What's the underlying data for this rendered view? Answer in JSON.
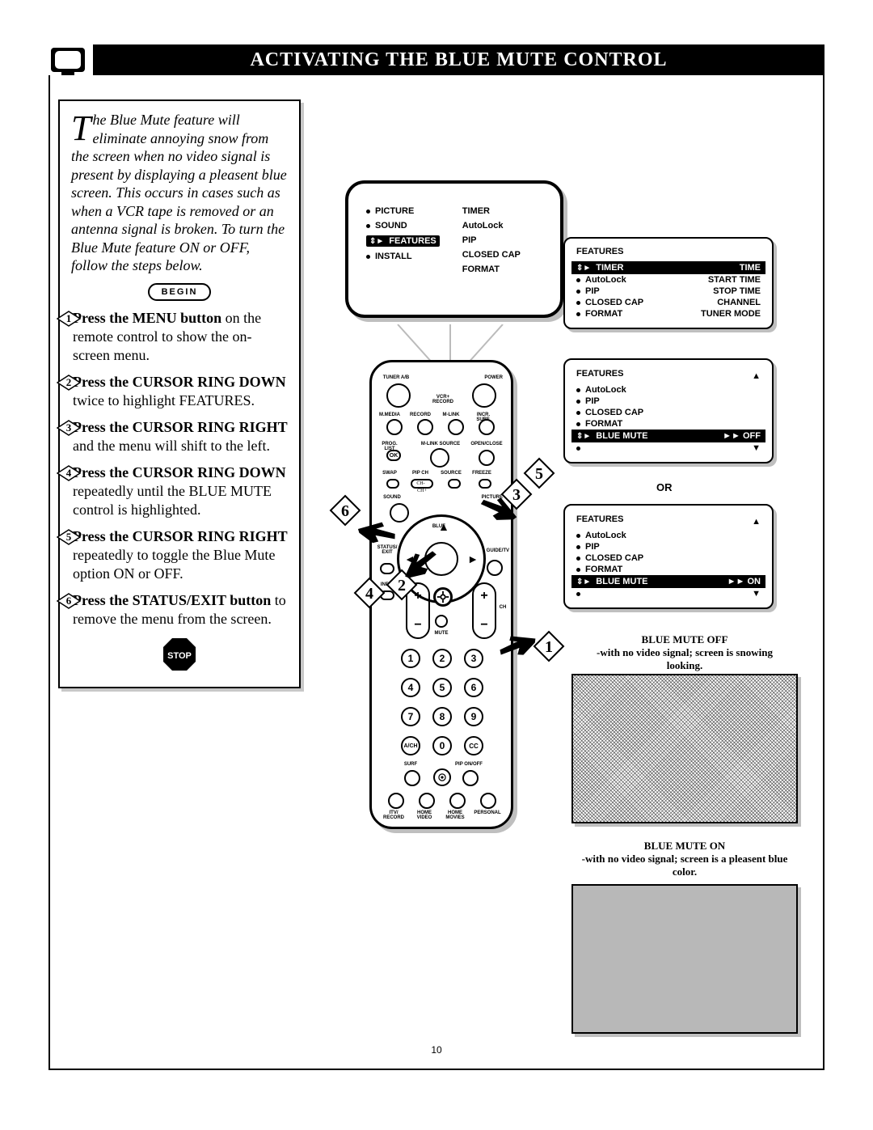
{
  "title": "ACTIVATING THE BLUE MUTE CONTROL",
  "intro_first": "T",
  "intro_rest": "he Blue Mute feature will eliminate annoying snow from the screen when no video signal is present by displaying a pleasent blue screen. This occurs in cases such as when a VCR tape is removed or an antenna signal is broken. To turn the Blue Mute feature ON or OFF, follow the steps below.",
  "begin": "BEGIN",
  "steps": [
    {
      "n": "1",
      "bold": "Press the MENU button",
      "rest": " on the remote control to show the on-screen menu."
    },
    {
      "n": "2",
      "bold": "Press the CURSOR RING DOWN",
      "rest": " twice to highlight FEATURES."
    },
    {
      "n": "3",
      "bold": "Press the CURSOR RING RIGHT",
      "rest": " and the menu will shift to the left."
    },
    {
      "n": "4",
      "bold": "Press the CURSOR RING DOWN",
      "rest": " repeatedly until the BLUE MUTE control is highlighted."
    },
    {
      "n": "5",
      "bold": "Press the CURSOR RING RIGHT",
      "rest": " repeatedly to toggle the Blue Mute option ON or OFF."
    },
    {
      "n": "6",
      "bold": "Press the STATUS/EXIT button",
      "rest": " to remove the menu from the screen."
    }
  ],
  "stop": "STOP",
  "tv_menu_left": [
    "PICTURE",
    "SOUND",
    "FEATURES",
    "INSTALL"
  ],
  "tv_menu_right": [
    "TIMER",
    "AutoLock",
    "PIP",
    "CLOSED CAP",
    "FORMAT"
  ],
  "tv_highlight_index": 2,
  "panel1": {
    "title": "FEATURES",
    "rows": [
      {
        "label": "TIMER",
        "value": "TIME",
        "hl": true
      },
      {
        "label": "AutoLock",
        "value": "START TIME"
      },
      {
        "label": "PIP",
        "value": "STOP TIME"
      },
      {
        "label": "CLOSED CAP",
        "value": "CHANNEL"
      },
      {
        "label": "FORMAT",
        "value": "TUNER MODE"
      }
    ]
  },
  "panel2": {
    "title": "FEATURES",
    "up": "▲",
    "down": "▼",
    "rows": [
      {
        "label": "AutoLock"
      },
      {
        "label": "PIP"
      },
      {
        "label": "CLOSED CAP"
      },
      {
        "label": "FORMAT"
      },
      {
        "label": "BLUE MUTE",
        "value": "►► OFF",
        "hl": true
      },
      {
        "label": ""
      }
    ]
  },
  "panel3": {
    "title": "FEATURES",
    "up": "▲",
    "down": "▼",
    "rows": [
      {
        "label": "AutoLock"
      },
      {
        "label": "PIP"
      },
      {
        "label": "CLOSED CAP"
      },
      {
        "label": "FORMAT"
      },
      {
        "label": "BLUE MUTE",
        "value": "►► ON",
        "hl": true
      },
      {
        "label": ""
      }
    ]
  },
  "or": "OR",
  "cap_off_title": "BLUE MUTE OFF",
  "cap_off_sub": "-with no video signal; screen is snowing looking.",
  "cap_on_title": "BLUE MUTE ON",
  "cap_on_sub": "-with no video signal; screen is a pleasent blue color.",
  "remote_labels": {
    "tuner": "TUNER A/B",
    "power": "POWER",
    "vcr": "VCR+\nRECORD",
    "row2": [
      "M.MEDIA",
      "RECORD",
      "M-LINK",
      "INCR. SURF."
    ],
    "row3": [
      "PROG. LIST",
      "M-LINK SOURCE",
      "OPEN/CLOSE"
    ],
    "ok": "OK",
    "row4": [
      "SWAP",
      "PIP CH",
      "SOURCE",
      "FREEZE"
    ],
    "sound": "SOUND",
    "picture": "PICTURE",
    "blue": "BLUE",
    "status": "STATUS/\nEXIT",
    "guide": "GUIDE/TV",
    "info": "INFO",
    "mute": "MUTE",
    "ch": "CH",
    "ach": "A/CH",
    "cc": "CC",
    "surf": "SURF",
    "pip": "PIP ON/OFF",
    "bottom": [
      "ITV/\nRECORD",
      "HOME\nVIDEO",
      "HOME\nMOVIES",
      "PERSONAL"
    ]
  },
  "numbers": [
    "1",
    "2",
    "3",
    "4",
    "5",
    "6",
    "7",
    "8",
    "9",
    "0"
  ],
  "callouts": [
    "1",
    "2",
    "3",
    "4",
    "5",
    "6"
  ],
  "page": "10"
}
